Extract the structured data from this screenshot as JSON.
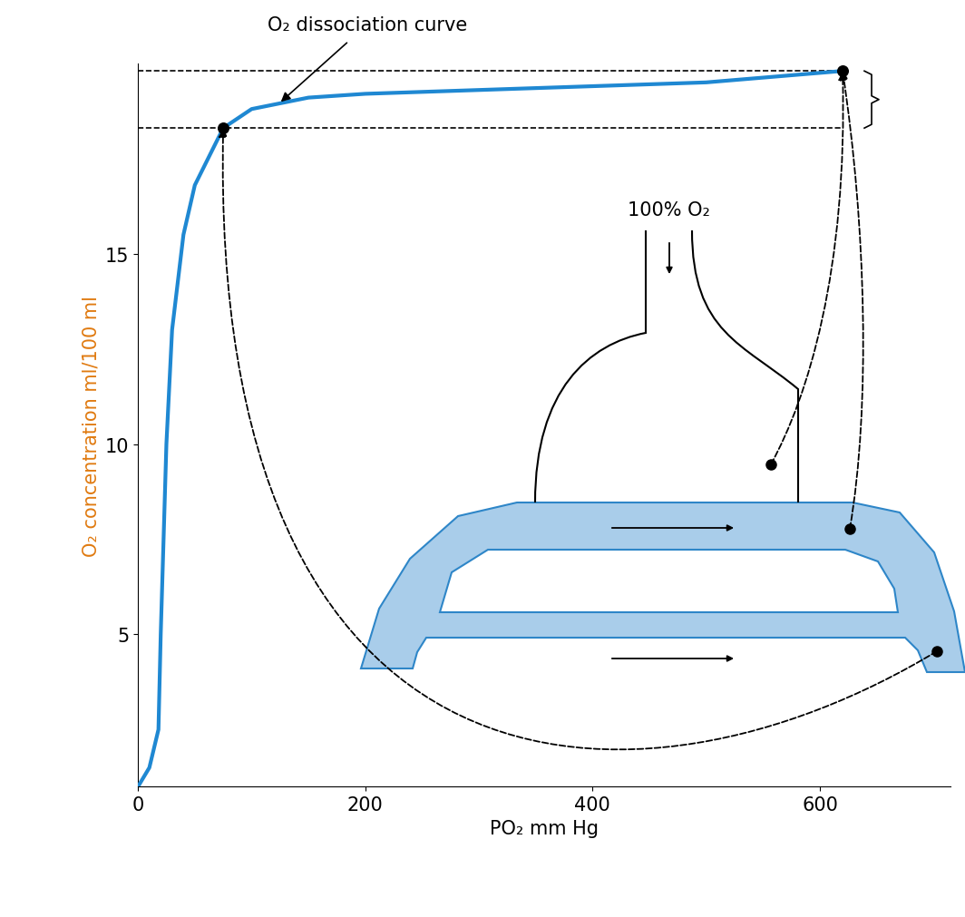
{
  "chart_data": {
    "type": "line",
    "xlabel": "PO₂ mm Hg",
    "ylabel": "O₂ concentration ml/100 ml",
    "annotations": [
      "O₂ dissociation curve",
      "100% O₂"
    ],
    "x": [
      0,
      10,
      18,
      20,
      25,
      30,
      40,
      50,
      75,
      100,
      150,
      200,
      300,
      400,
      500,
      620
    ],
    "values": [
      1,
      1.5,
      2.5,
      5,
      10,
      13,
      15.5,
      16.8,
      18.3,
      18.8,
      19.1,
      19.2,
      19.3,
      19.4,
      19.5,
      19.8
    ],
    "color": "#1f88d2",
    "points": {
      "x": [
        75,
        620
      ],
      "values": [
        18.3,
        19.8
      ]
    },
    "xlim": [
      0,
      715
    ],
    "ylim": [
      1,
      20
    ],
    "xticks": [
      0,
      200,
      400,
      600
    ],
    "yticks": [
      5,
      10,
      15
    ]
  }
}
